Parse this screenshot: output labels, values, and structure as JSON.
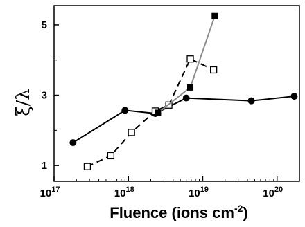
{
  "chart_data": {
    "type": "line",
    "xlabel": "Fluence (ions cm",
    "xlabel_sup": "-2",
    "xlabel_close": ")",
    "ylabel": "ξ/λ",
    "xscale": "log",
    "xlim": [
      1e+17,
      2e+20
    ],
    "ylim": [
      0.55,
      5.55
    ],
    "x_ticks": [
      {
        "value": 1e+17,
        "base": "10",
        "exp": "17"
      },
      {
        "value": 1e+18,
        "base": "10",
        "exp": "18"
      },
      {
        "value": 1e+19,
        "base": "10",
        "exp": "19"
      },
      {
        "value": 1e+20,
        "base": "10",
        "exp": "20"
      }
    ],
    "y_ticks": [
      {
        "value": 1,
        "label": "1"
      },
      {
        "value": 3,
        "label": "3"
      },
      {
        "value": 5,
        "label": "5"
      }
    ],
    "grid": false,
    "legend": "none",
    "series": [
      {
        "marker": "filled-circle",
        "line_style": "solid",
        "line_color": "#000000",
        "points": [
          [
            1.8e+17,
            1.65
          ],
          [
            9e+17,
            2.57
          ],
          [
            2.3e+18,
            2.48
          ],
          [
            6e+18,
            2.92
          ],
          [
            4.5e+19,
            2.84
          ],
          [
            1.7e+20,
            2.97
          ]
        ]
      },
      {
        "marker": "open-square",
        "line_style": "dashed",
        "line_color": "#000000",
        "points": [
          [
            2.8e+17,
            0.97
          ],
          [
            5.8e+17,
            1.28
          ],
          [
            1.1e+18,
            1.94
          ],
          [
            2.3e+18,
            2.55
          ],
          [
            3.5e+18,
            2.72
          ],
          [
            6.8e+18,
            4.03
          ],
          [
            1.4e+19,
            3.72
          ]
        ]
      },
      {
        "marker": "filled-square",
        "line_style": "solid",
        "line_color": "#8c8c8c",
        "points": [
          [
            2.5e+18,
            2.5
          ],
          [
            6.8e+18,
            3.22
          ],
          [
            1.45e+19,
            5.25
          ]
        ]
      }
    ]
  }
}
